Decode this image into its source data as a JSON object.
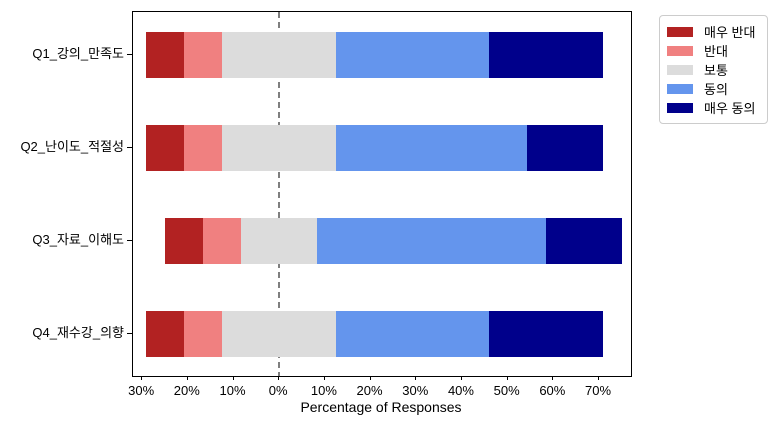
{
  "figure": {
    "background": "#ffffff",
    "axis_color": "#000000",
    "zero_line_color": "#7f7f7f"
  },
  "chart_data": {
    "type": "bar",
    "orientation": "horizontal",
    "diverging": true,
    "title": "",
    "xlabel": "Percentage of Responses",
    "ylabel": "",
    "categories": [
      "Q1_강의_만족도",
      "Q2_난이도_적절성",
      "Q3_자료_이해도",
      "Q4_재수강_의향"
    ],
    "series": [
      {
        "name": "매우 반대",
        "color": "#b22222",
        "values": [
          8.33,
          8.33,
          8.33,
          8.33
        ]
      },
      {
        "name": "반대",
        "color": "#f08080",
        "values": [
          8.33,
          8.33,
          8.33,
          8.33
        ]
      },
      {
        "name": "보통",
        "color": "#dcdcdc",
        "values": [
          25.0,
          25.0,
          16.67,
          25.0
        ]
      },
      {
        "name": "동의",
        "color": "#6495ed",
        "values": [
          33.33,
          41.67,
          50.0,
          33.33
        ]
      },
      {
        "name": "매우 동의",
        "color": "#00008b",
        "values": [
          25.0,
          16.67,
          16.67,
          25.0
        ]
      }
    ],
    "neutral_series_index": 2,
    "x_ticks": [
      "30%",
      "20%",
      "10%",
      "0%",
      "10%",
      "20%",
      "30%",
      "40%",
      "50%",
      "60%",
      "70%"
    ],
    "x_tick_values": [
      -30,
      -20,
      -10,
      0,
      10,
      20,
      30,
      40,
      50,
      60,
      70
    ],
    "xlim": [
      -32.0,
      77.0
    ],
    "zero_reference_line": true,
    "grid": false,
    "legend_position": "outside-top-right"
  }
}
